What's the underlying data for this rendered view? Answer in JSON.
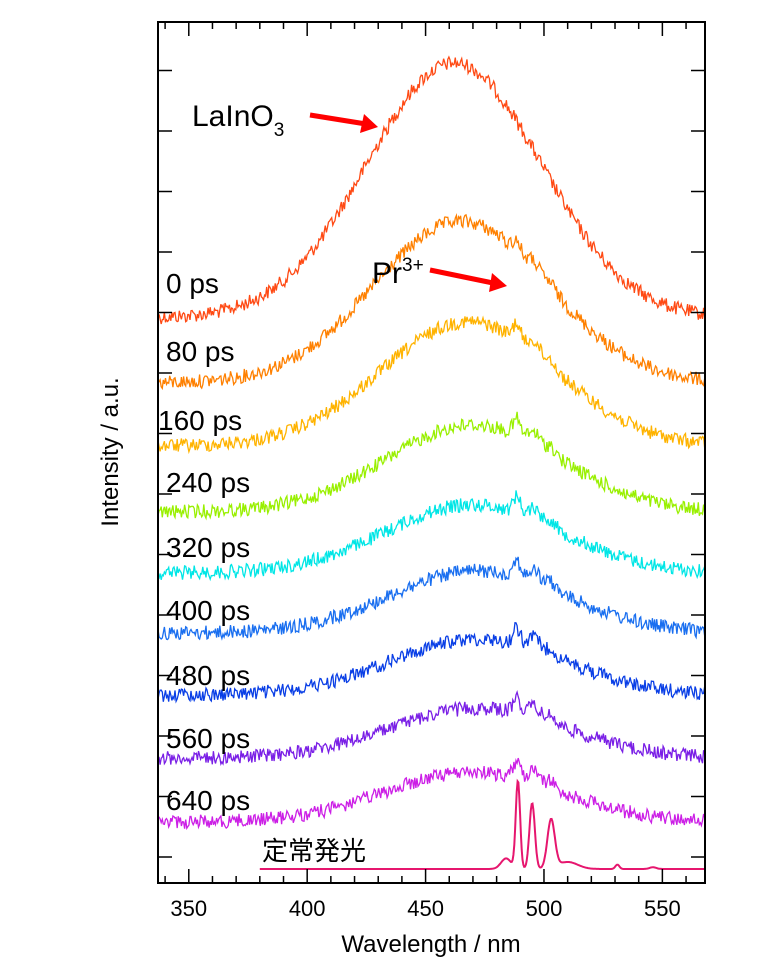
{
  "chart_data": {
    "type": "line",
    "title": "",
    "xlabel": "Wavelength / nm",
    "ylabel": "Intensity / a.u.",
    "xlim": [
      337,
      568
    ],
    "x_ticks": [
      "350",
      "400",
      "450",
      "500",
      "550"
    ],
    "y_tick_labels": "none",
    "grid": false,
    "legend": "none",
    "series": [
      {
        "name": "0 ps",
        "color": "#FF4A14",
        "broad_peak_nm": 462,
        "baseline": 0.3,
        "amplitude": 0.41,
        "sharp_line": 0.0
      },
      {
        "name": "80 ps",
        "color": "#FF8000",
        "broad_peak_nm": 465,
        "baseline": 0.22,
        "amplitude": 0.26,
        "sharp_line": 0.04
      },
      {
        "name": "160 ps",
        "color": "#FFB300",
        "broad_peak_nm": 468,
        "baseline": 0.18,
        "amplitude": 0.2,
        "sharp_line": 0.06
      },
      {
        "name": "240 ps",
        "color": "#99F000",
        "broad_peak_nm": 470,
        "baseline": 0.16,
        "amplitude": 0.14,
        "sharp_line": 0.06
      },
      {
        "name": "320 ps",
        "color": "#00E6E6",
        "broad_peak_nm": 470,
        "baseline": 0.15,
        "amplitude": 0.11,
        "sharp_line": 0.06
      },
      {
        "name": "400 ps",
        "color": "#1A6FF0",
        "broad_peak_nm": 472,
        "baseline": 0.14,
        "amplitude": 0.1,
        "sharp_line": 0.06
      },
      {
        "name": "480 ps",
        "color": "#0A3FE6",
        "broad_peak_nm": 472,
        "baseline": 0.13,
        "amplitude": 0.09,
        "sharp_line": 0.06
      },
      {
        "name": "560 ps",
        "color": "#7A1FE6",
        "broad_peak_nm": 472,
        "baseline": 0.12,
        "amplitude": 0.08,
        "sharp_line": 0.06
      },
      {
        "name": "640 ps",
        "color": "#CC1FE6",
        "broad_peak_nm": 470,
        "baseline": 0.11,
        "amplitude": 0.08,
        "sharp_line": 0.06
      },
      {
        "name": "定常発光",
        "color": "#E6166E",
        "steady_state": true,
        "peaks_nm": [
          489,
          495,
          503,
          531
        ],
        "x_start_nm": 380
      }
    ],
    "annotations": [
      {
        "text": "LaInO",
        "subscript": "3",
        "target": "0 ps broad band",
        "arrow_color": "#FF0000"
      },
      {
        "text": "Pr",
        "superscript": "3+",
        "target": "sharp line near 489 nm",
        "arrow_color": "#FF0000"
      }
    ]
  }
}
